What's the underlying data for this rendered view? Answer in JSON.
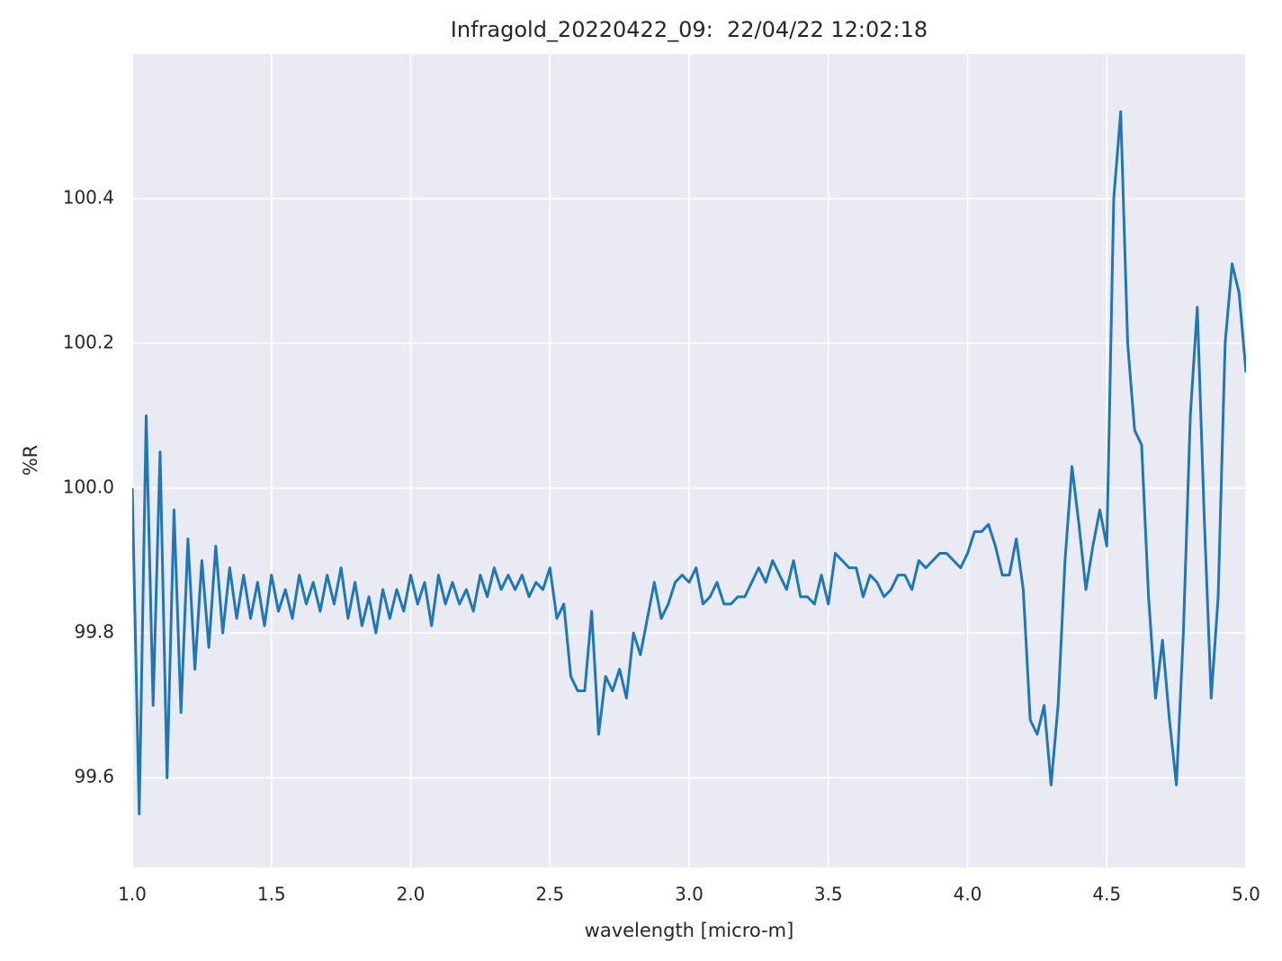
{
  "chart_data": {
    "type": "line",
    "title": "Infragold_20220422_09:  22/04/22 12:02:18",
    "x_label": "wavelength [micro-m]",
    "y_label": "%R",
    "xlim": [
      1.0,
      5.0
    ],
    "ylim": [
      99.476,
      100.6
    ],
    "xticks": [
      {
        "value": 1.0,
        "label": "1.0"
      },
      1.5,
      {
        "value": 2.0,
        "label": "2.0"
      },
      2.5,
      {
        "value": 3.0,
        "label": "3.0"
      },
      3.5,
      {
        "value": 4.0,
        "label": "4.0"
      },
      4.5,
      {
        "value": 5.0,
        "label": "5.0"
      }
    ],
    "yticks": [
      99.6,
      99.8,
      {
        "value": 100.0,
        "label": "100.0"
      },
      100.2,
      100.4
    ],
    "grid": true,
    "x": [
      1.0,
      1.025,
      1.05,
      1.075,
      1.1,
      1.125,
      1.15,
      1.175,
      1.2,
      1.225,
      1.25,
      1.275,
      1.3,
      1.325,
      1.35,
      1.375,
      1.4,
      1.425,
      1.45,
      1.475,
      1.5,
      1.525,
      1.55,
      1.575,
      1.6,
      1.625,
      1.65,
      1.675,
      1.7,
      1.725,
      1.75,
      1.775,
      1.8,
      1.825,
      1.85,
      1.875,
      1.9,
      1.925,
      1.95,
      1.975,
      2.0,
      2.025,
      2.05,
      2.075,
      2.1,
      2.125,
      2.15,
      2.175,
      2.2,
      2.225,
      2.25,
      2.275,
      2.3,
      2.325,
      2.35,
      2.375,
      2.4,
      2.425,
      2.45,
      2.475,
      2.5,
      2.525,
      2.55,
      2.575,
      2.6,
      2.625,
      2.65,
      2.675,
      2.7,
      2.725,
      2.75,
      2.775,
      2.8,
      2.825,
      2.85,
      2.875,
      2.9,
      2.925,
      2.95,
      2.975,
      3.0,
      3.025,
      3.05,
      3.075,
      3.1,
      3.125,
      3.15,
      3.175,
      3.2,
      3.225,
      3.25,
      3.275,
      3.3,
      3.325,
      3.35,
      3.375,
      3.4,
      3.425,
      3.45,
      3.475,
      3.5,
      3.525,
      3.55,
      3.575,
      3.6,
      3.625,
      3.65,
      3.675,
      3.7,
      3.725,
      3.75,
      3.775,
      3.8,
      3.825,
      3.85,
      3.875,
      3.9,
      3.925,
      3.95,
      3.975,
      4.0,
      4.025,
      4.05,
      4.075,
      4.1,
      4.125,
      4.15,
      4.175,
      4.2,
      4.225,
      4.25,
      4.275,
      4.3,
      4.325,
      4.35,
      4.375,
      4.4,
      4.425,
      4.45,
      4.475,
      4.5,
      4.525,
      4.55,
      4.575,
      4.6,
      4.625,
      4.65,
      4.675,
      4.7,
      4.725,
      4.75,
      4.775,
      4.8,
      4.825,
      4.85,
      4.875,
      4.9,
      4.925,
      4.95,
      4.975,
      5.0
    ],
    "series": [
      {
        "color": "#1f77b4",
        "values": [
          100.0,
          99.55,
          100.1,
          99.7,
          100.05,
          99.6,
          99.97,
          99.69,
          99.93,
          99.75,
          99.9,
          99.78,
          99.92,
          99.8,
          99.89,
          99.82,
          99.88,
          99.82,
          99.87,
          99.81,
          99.88,
          99.83,
          99.86,
          99.82,
          99.88,
          99.84,
          99.87,
          99.83,
          99.88,
          99.84,
          99.89,
          99.82,
          99.87,
          99.81,
          99.85,
          99.8,
          99.86,
          99.82,
          99.86,
          99.83,
          99.88,
          99.84,
          99.87,
          99.81,
          99.88,
          99.84,
          99.87,
          99.84,
          99.86,
          99.83,
          99.88,
          99.85,
          99.89,
          99.86,
          99.88,
          99.86,
          99.88,
          99.85,
          99.87,
          99.86,
          99.89,
          99.82,
          99.84,
          99.74,
          99.72,
          99.72,
          99.83,
          99.66,
          99.74,
          99.72,
          99.75,
          99.71,
          99.8,
          99.77,
          99.82,
          99.87,
          99.82,
          99.84,
          99.87,
          99.88,
          99.87,
          99.89,
          99.84,
          99.85,
          99.87,
          99.84,
          99.84,
          99.85,
          99.85,
          99.87,
          99.89,
          99.87,
          99.9,
          99.88,
          99.86,
          99.9,
          99.85,
          99.85,
          99.84,
          99.88,
          99.84,
          99.91,
          99.9,
          99.89,
          99.89,
          99.85,
          99.88,
          99.87,
          99.85,
          99.86,
          99.88,
          99.88,
          99.86,
          99.9,
          99.89,
          99.9,
          99.91,
          99.91,
          99.9,
          99.89,
          99.91,
          99.94,
          99.94,
          99.95,
          99.92,
          99.88,
          99.88,
          99.93,
          99.86,
          99.68,
          99.66,
          99.7,
          99.59,
          99.7,
          99.9,
          100.03,
          99.95,
          99.86,
          99.92,
          99.97,
          99.92,
          100.4,
          100.52,
          100.2,
          100.08,
          100.06,
          99.85,
          99.71,
          99.79,
          99.68,
          99.59,
          99.8,
          100.1,
          100.25,
          99.96,
          99.71,
          99.85,
          100.2,
          100.31,
          100.27,
          100.16
        ]
      }
    ]
  }
}
